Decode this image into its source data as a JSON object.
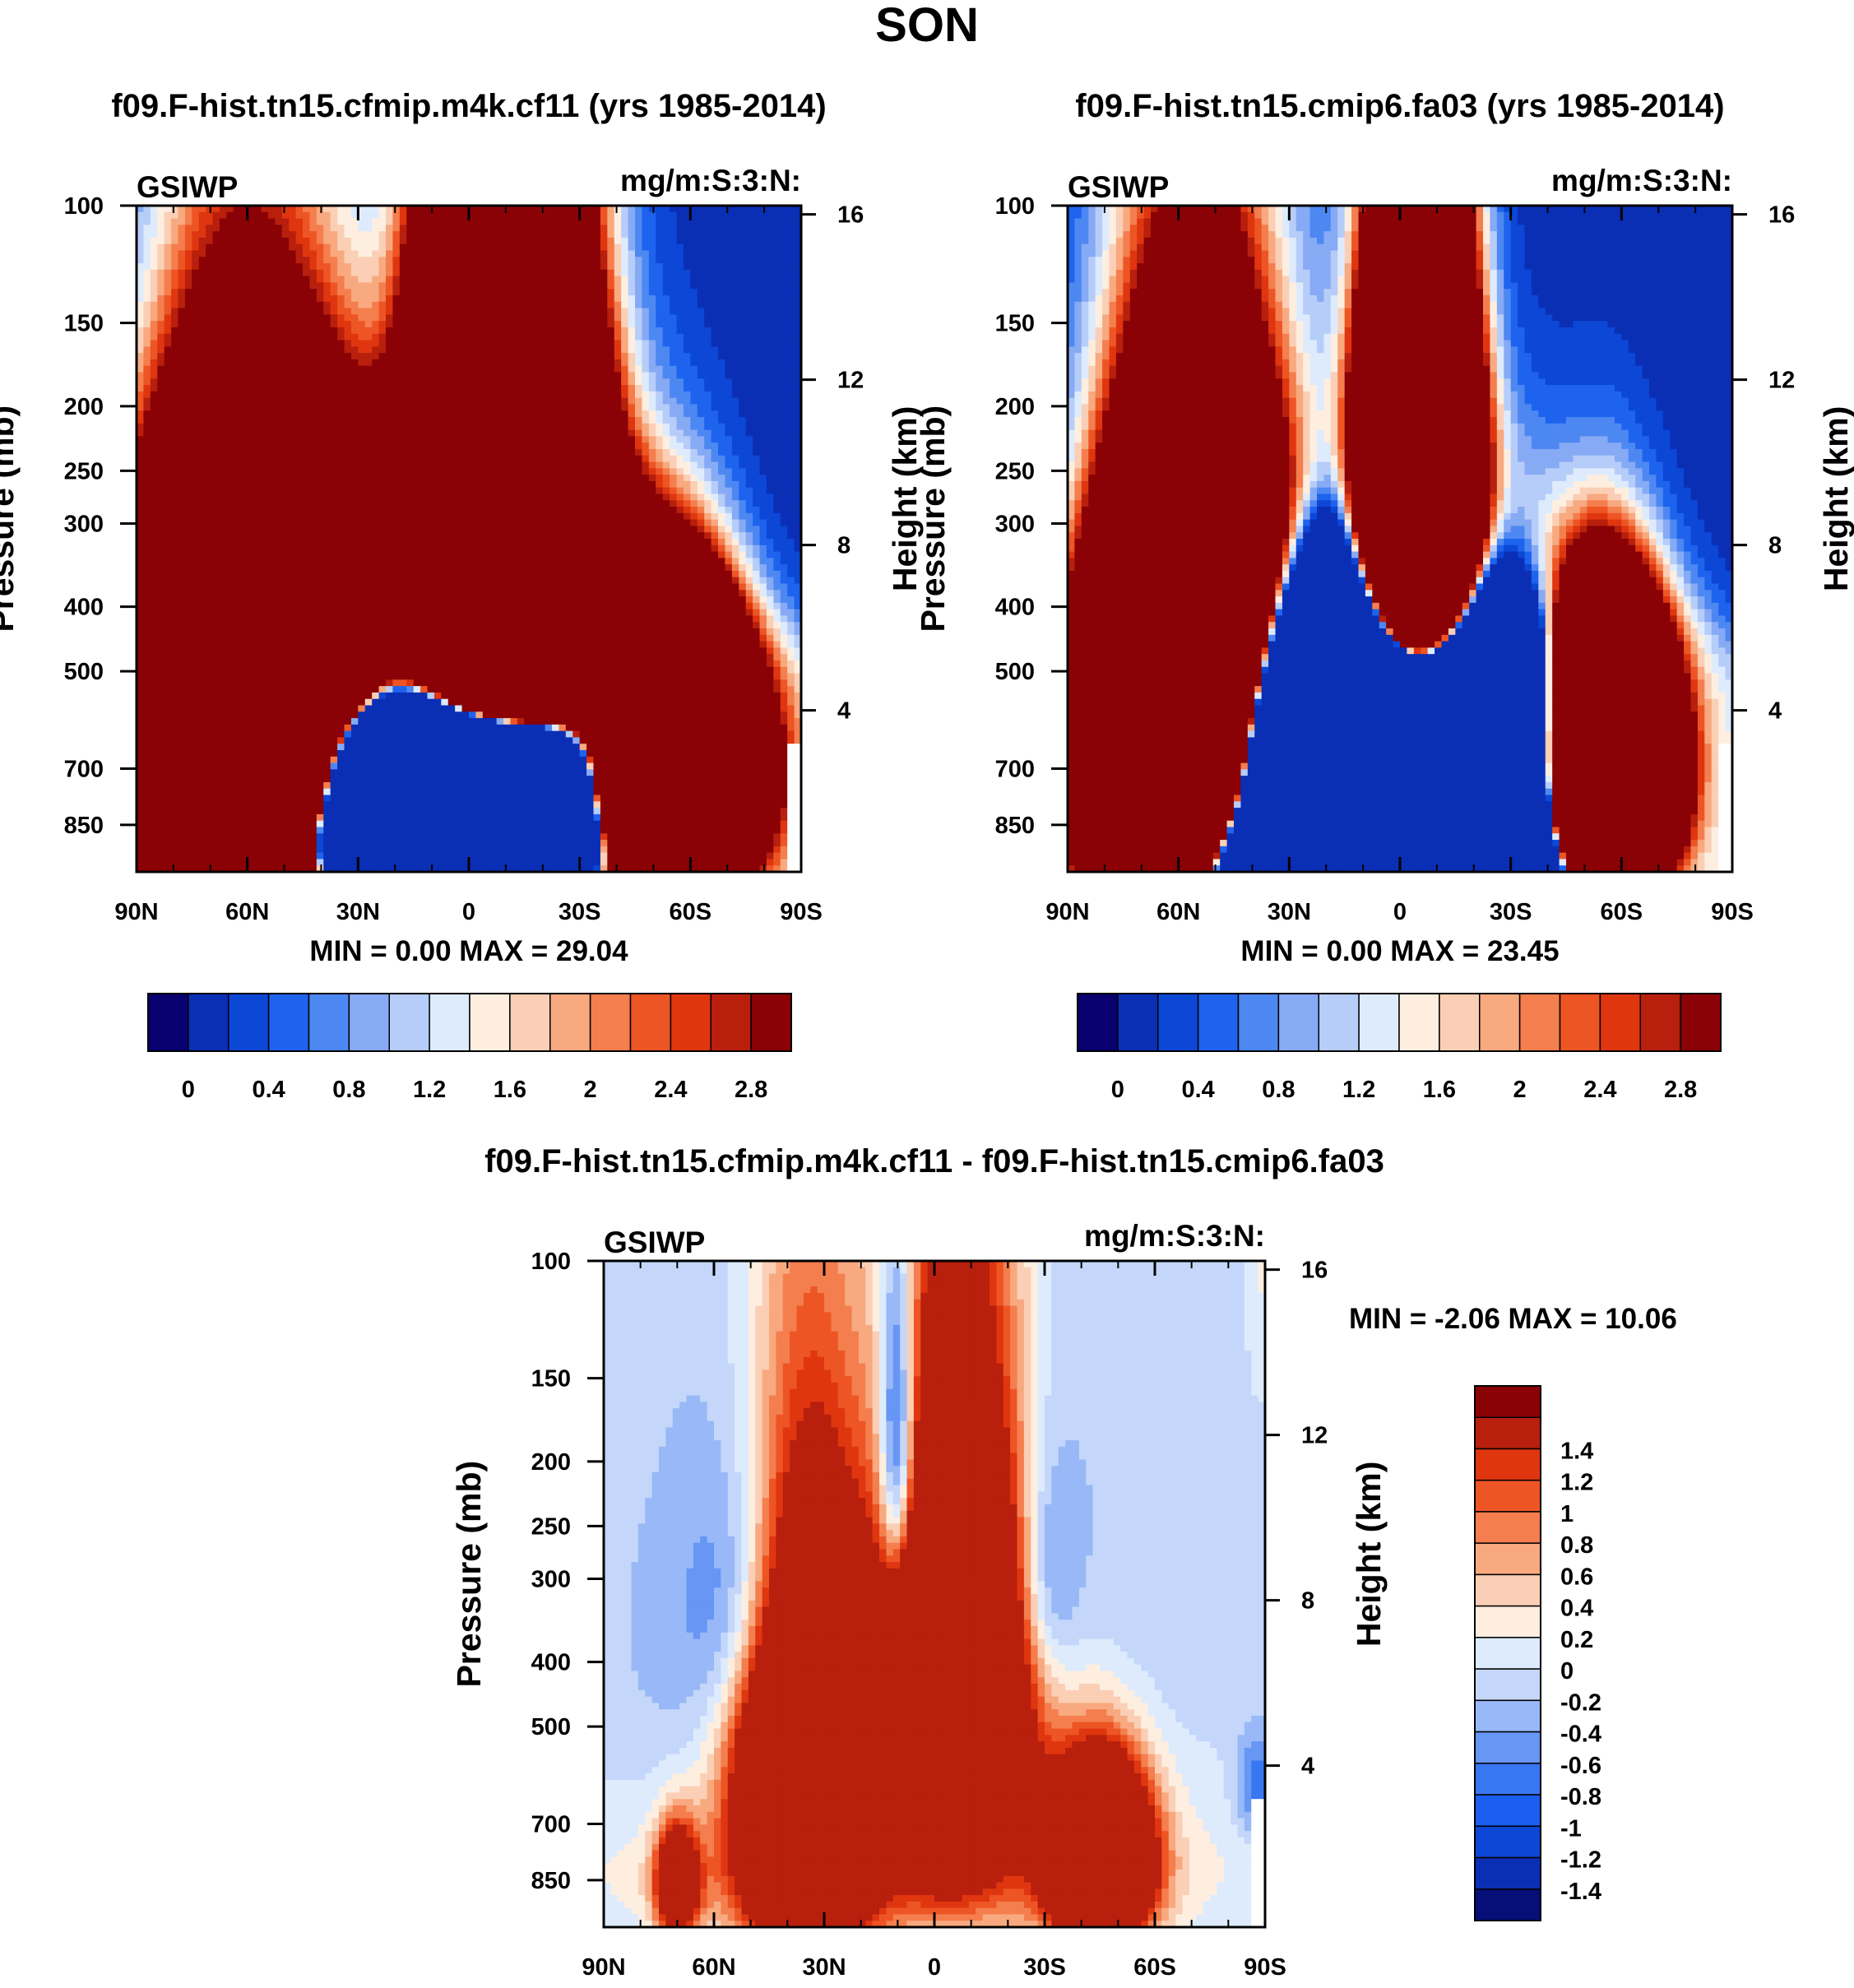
{
  "colors": {
    "seq": [
      "#08006e",
      "#0a2fb5",
      "#0c47d6",
      "#1e63ee",
      "#4d88f2",
      "#87aaf5",
      "#b7cdf9",
      "#ddebfd",
      "#fdeee0",
      "#fbcfb5",
      "#f8a97f",
      "#f47e4e",
      "#ee5524",
      "#df3610",
      "#b81f0c",
      "#8a0206"
    ],
    "div": [
      "#060e78",
      "#0a2fb5",
      "#0c47d6",
      "#1b5ef0",
      "#3877f2",
      "#6796f4",
      "#98b8f7",
      "#c4d7fa",
      "#ddebfd",
      "#fdeee0",
      "#fbcfb5",
      "#f8a97f",
      "#f47e4e",
      "#ee5524",
      "#df3610",
      "#b81f0c",
      "#8a0206"
    ]
  },
  "figure": {
    "title": "SON"
  },
  "chart_data": [
    {
      "type": "heatmap",
      "id": "top-left",
      "title": "f09.F-hist.tn15.cfmip.m4k.cf11 (yrs 1985-2014)",
      "left_label": "GSIWP",
      "right_label": "mg/m:S:3:N:",
      "ylabel": "Pressure (mb)",
      "y2label": "Height (km)",
      "x_ticks": [
        "90N",
        "60N",
        "30N",
        "0",
        "30S",
        "60S",
        "90S"
      ],
      "x_range": [
        90,
        -90
      ],
      "y_ticks": [
        "100",
        "150",
        "200",
        "250",
        "300",
        "400",
        "500",
        "700",
        "850"
      ],
      "y_values": [
        100,
        150,
        200,
        250,
        300,
        400,
        500,
        700,
        850
      ],
      "y_range_mb": [
        100,
        1000
      ],
      "y2_ticks": [
        "16",
        "12",
        "8",
        "4"
      ],
      "y2_values_km": [
        16,
        12,
        8,
        4
      ],
      "min_max": "MIN =   0.00  MAX =  29.04",
      "min": 0.0,
      "max": 29.04,
      "cb_labels": [
        "0",
        "0.4",
        "0.8",
        "1.2",
        "1.6",
        "2",
        "2.4",
        "2.8"
      ],
      "cb_values": [
        0,
        0.4,
        0.8,
        1.2,
        1.6,
        2,
        2.4,
        2.8
      ],
      "cb_bounds": [
        0,
        0.2,
        0.4,
        0.6,
        0.8,
        1.0,
        1.2,
        1.4,
        1.6,
        1.8,
        2.0,
        2.2,
        2.4,
        2.6,
        2.8
      ],
      "cb_orientation": "horizontal",
      "features": {
        "lobes": [
          {
            "lat": -10,
            "p": 380,
            "slat": 14,
            "sp": 190,
            "amp": 36
          },
          {
            "lat": 0,
            "p": 280,
            "slat": 8,
            "sp": 100,
            "amp": 12
          },
          {
            "lat": 60,
            "p": 620,
            "slat": 20,
            "sp": 230,
            "amp": 36
          },
          {
            "lat": -55,
            "p": 700,
            "slat": 12,
            "sp": 170,
            "amp": 36
          },
          {
            "lat": -30,
            "p": 420,
            "slat": 15,
            "sp": 140,
            "amp": 2.6
          },
          {
            "lat": 35,
            "p": 380,
            "slat": 10,
            "sp": 120,
            "amp": 1.6
          }
        ],
        "envelope": {
          "floor": 2.3,
          "base_mb": 440,
          "peak_mb": 155,
          "width": 42
        },
        "trough": {
          "lat": 5,
          "p": 790,
          "slat": 27,
          "sp": 165,
          "amp": -48
        },
        "missing_south": true
      }
    },
    {
      "type": "heatmap",
      "id": "top-right",
      "title": "f09.F-hist.tn15.cmip6.fa03 (yrs 1985-2014)",
      "left_label": "GSIWP",
      "right_label": "mg/m:S:3:N:",
      "ylabel": "Pressure (mb)",
      "y2label": "Height (km)",
      "x_ticks": [
        "90N",
        "60N",
        "30N",
        "0",
        "30S",
        "60S",
        "90S"
      ],
      "x_range": [
        90,
        -90
      ],
      "y_ticks": [
        "100",
        "150",
        "200",
        "250",
        "300",
        "400",
        "500",
        "700",
        "850"
      ],
      "y_values": [
        100,
        150,
        200,
        250,
        300,
        400,
        500,
        700,
        850
      ],
      "y_range_mb": [
        100,
        1000
      ],
      "y2_ticks": [
        "16",
        "12",
        "8",
        "4"
      ],
      "y2_values_km": [
        16,
        12,
        8,
        4
      ],
      "min_max": "MIN =   0.00  MAX =  23.45",
      "min": 0.0,
      "max": 23.45,
      "cb_labels": [
        "0",
        "0.4",
        "0.8",
        "1.2",
        "1.6",
        "2",
        "2.4",
        "2.8"
      ],
      "cb_values": [
        0,
        0.4,
        0.8,
        1.2,
        1.6,
        2,
        2.4,
        2.8
      ],
      "cb_bounds": [
        0,
        0.2,
        0.4,
        0.6,
        0.8,
        1.0,
        1.2,
        1.4,
        1.6,
        1.8,
        2.0,
        2.2,
        2.4,
        2.6,
        2.8
      ],
      "cb_orientation": "horizontal",
      "features": {
        "lobes": [
          {
            "lat": -5,
            "p": 340,
            "slat": 9,
            "sp": 150,
            "amp": 36
          },
          {
            "lat": 55,
            "p": 620,
            "slat": 17,
            "sp": 240,
            "amp": 36
          },
          {
            "lat": -55,
            "p": 720,
            "slat": 10,
            "sp": 170,
            "amp": 36
          },
          {
            "lat": -30,
            "p": 400,
            "slat": 10,
            "sp": 120,
            "amp": 1.5
          },
          {
            "lat": -58,
            "p": 520,
            "slat": 12,
            "sp": 130,
            "amp": 1.6
          }
        ],
        "envelope": {
          "floor": 2.0,
          "base_mb": 440,
          "peak_mb": 130,
          "width": 40
        },
        "trough": {
          "lat": 5,
          "p": 800,
          "slat": 32,
          "sp": 270,
          "amp": -60
        },
        "missing_south": true
      }
    },
    {
      "type": "heatmap",
      "id": "bottom",
      "title": "f09.F-hist.tn15.cfmip.m4k.cf11 - f09.F-hist.tn15.cmip6.fa03",
      "left_label": "GSIWP",
      "right_label": "mg/m:S:3:N:",
      "ylabel": "Pressure (mb)",
      "y2label": "Height (km)",
      "x_ticks": [
        "90N",
        "60N",
        "30N",
        "0",
        "30S",
        "60S",
        "90S"
      ],
      "x_range": [
        90,
        -90
      ],
      "y_ticks": [
        "100",
        "150",
        "200",
        "250",
        "300",
        "400",
        "500",
        "700",
        "850"
      ],
      "y_values": [
        100,
        150,
        200,
        250,
        300,
        400,
        500,
        700,
        850
      ],
      "y_range_mb": [
        100,
        1000
      ],
      "y2_ticks": [
        "16",
        "12",
        "8",
        "4"
      ],
      "y2_values_km": [
        16,
        12,
        8,
        4
      ],
      "min_max": "MIN =  -2.06  MAX =  10.06",
      "min": -2.06,
      "max": 10.06,
      "cb_labels": [
        "1.4",
        "1.2",
        "1",
        "0.8",
        "0.6",
        "0.4",
        "0.2",
        "0",
        "-0.2",
        "-0.4",
        "-0.6",
        "-0.8",
        "-1",
        "-1.2",
        "-1.4"
      ],
      "cb_values": [
        1.4,
        1.2,
        1.0,
        0.8,
        0.6,
        0.4,
        0.2,
        0,
        -0.2,
        -0.4,
        -0.6,
        -0.8,
        -1.0,
        -1.2,
        -1.4
      ],
      "cb_bounds": [
        -1.4,
        -1.2,
        -1.0,
        -0.8,
        -0.6,
        -0.4,
        -0.2,
        0,
        0.2,
        0.4,
        0.6,
        0.8,
        1.0,
        1.2,
        1.4
      ],
      "cb_orientation": "vertical",
      "features": {
        "background": -0.1,
        "lobes": [
          {
            "lat": -5,
            "p": 450,
            "slat": 13,
            "sp": 230,
            "amp": 6
          },
          {
            "lat": 35,
            "p": 610,
            "slat": 12,
            "sp": 270,
            "amp": 6
          },
          {
            "lat": -45,
            "p": 790,
            "slat": 9,
            "sp": 160,
            "amp": 6
          },
          {
            "lat": 70,
            "p": 860,
            "slat": 4,
            "sp": 110,
            "amp": 3
          },
          {
            "lat": 10,
            "p": 830,
            "slat": 70,
            "sp": 170,
            "amp": 0.5
          },
          {
            "lat": 0,
            "p": 600,
            "slat": 50,
            "sp": 320,
            "amp": 0.35
          },
          {
            "lat": 10,
            "p": 200,
            "slat": 3.5,
            "sp": 85,
            "amp": -2.0
          },
          {
            "lat": -7,
            "p": 200,
            "slat": 3.5,
            "sp": 40,
            "amp": -0.7
          },
          {
            "lat": 50,
            "p": 330,
            "slat": 11,
            "sp": 110,
            "amp": -0.85
          },
          {
            "lat": -30,
            "p": 300,
            "slat": 6,
            "sp": 90,
            "amp": -0.75
          },
          {
            "lat": 60,
            "p": 420,
            "slat": 22,
            "sp": 200,
            "amp": -0.3
          },
          {
            "lat": -40,
            "p": 380,
            "slat": 22,
            "sp": 220,
            "amp": -0.3
          },
          {
            "lat": 10,
            "p": 195,
            "slat": 8,
            "sp": 110,
            "amp": -0.35
          },
          {
            "lat": -88,
            "p": 620,
            "slat": 4,
            "sp": 80,
            "amp": -0.8
          },
          {
            "lat": -89,
            "p": 100,
            "slat": 3,
            "sp": 40,
            "amp": 0.3
          }
        ],
        "missing_south": true
      }
    }
  ]
}
